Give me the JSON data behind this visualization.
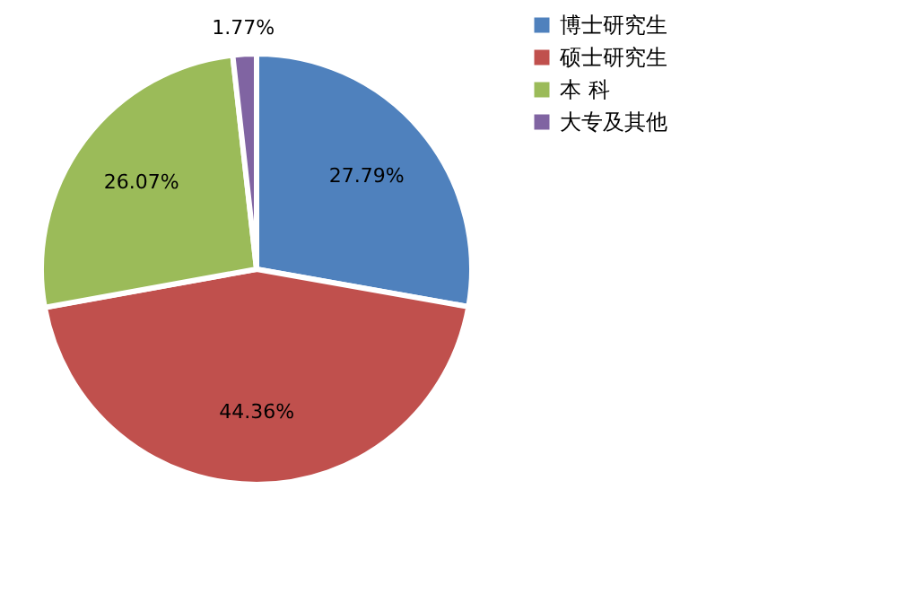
{
  "chart_data": {
    "type": "pie",
    "categories": [
      "博士研究生",
      "硕士研究生",
      "本 科",
      "大专及其他"
    ],
    "values": [
      27.79,
      44.36,
      26.07,
      1.77
    ],
    "colors": [
      "#4f81bd",
      "#c0504d",
      "#9bbb59",
      "#8064a2"
    ],
    "value_labels": [
      "27.79%",
      "44.36%",
      "26.07%",
      "1.77%"
    ],
    "legend": "right"
  }
}
